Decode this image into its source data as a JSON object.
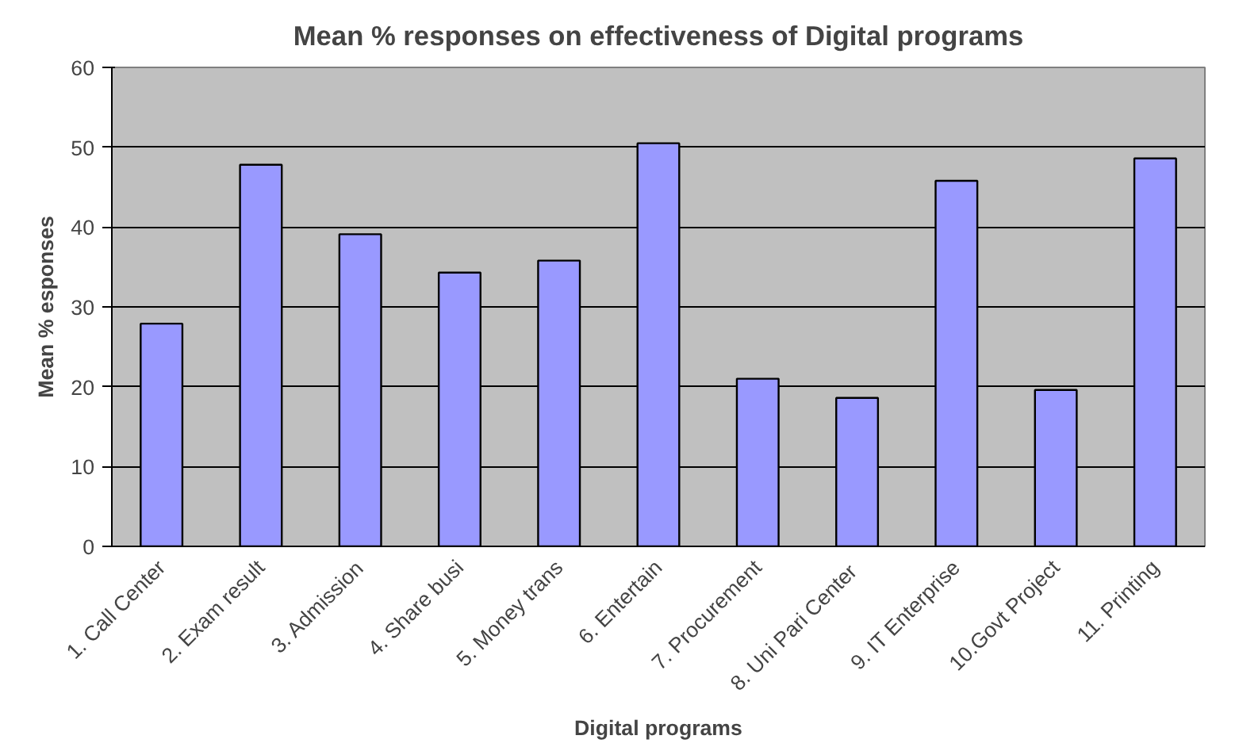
{
  "chart_data": {
    "type": "bar",
    "title": "Mean % responses on effectiveness of Digital programs",
    "xlabel": "Digital programs",
    "ylabel": "Mean % esponses",
    "categories": [
      "1. Call Center",
      "2. Exam result",
      "3. Admission",
      "4. Share busi",
      "5. Money trans",
      "6. Entertain",
      "7. Procurement",
      "8. Uni Pari  Center",
      "9. IT Enterprise",
      "10.Govt Project",
      "11. Printing"
    ],
    "values": [
      27.9,
      47.8,
      39.1,
      34.3,
      35.8,
      50.5,
      21.0,
      18.6,
      45.8,
      19.6,
      48.6
    ],
    "color": "#9999ff",
    "ylim": [
      0,
      60
    ],
    "yticks": [
      0,
      10,
      20,
      30,
      40,
      50,
      60
    ],
    "grid": "y"
  }
}
